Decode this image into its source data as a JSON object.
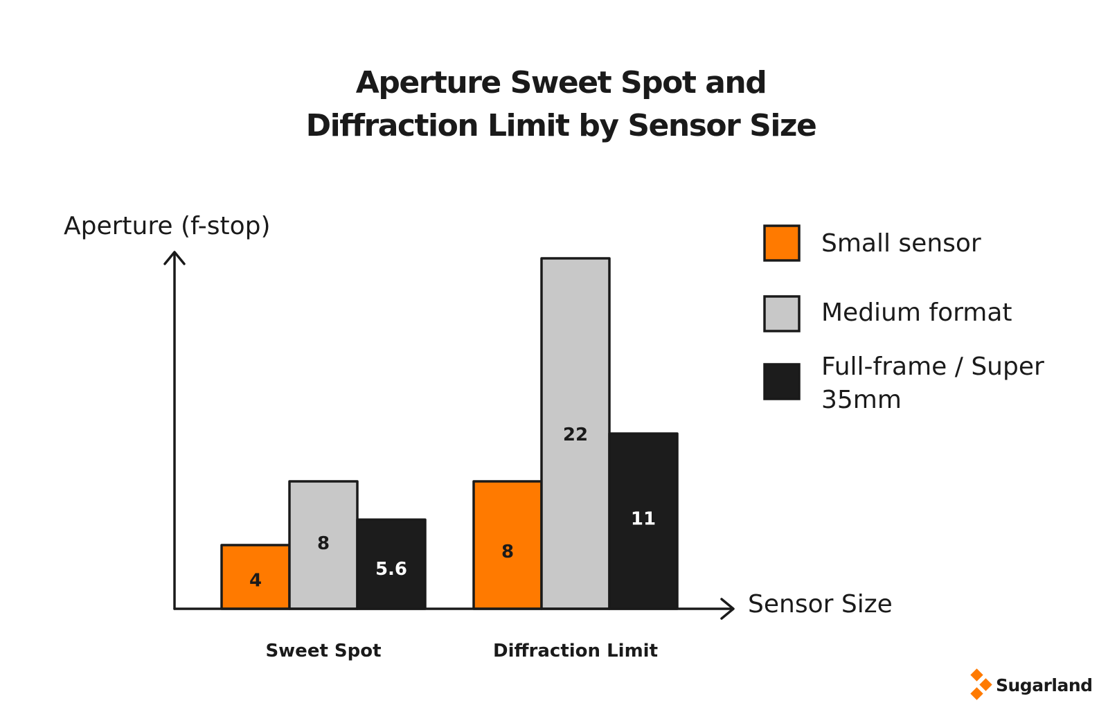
{
  "chart_data": {
    "type": "bar",
    "title": "Aperture Sweet Spot and Diffraction Limit by Sensor Size",
    "title_lines": [
      "Aperture Sweet Spot and",
      "Diffraction Limit by Sensor Size"
    ],
    "ylabel": "Aperture (f-stop)",
    "xlabel": "Sensor Size",
    "categories": [
      "Sweet Spot",
      "Diffraction Limit"
    ],
    "series": [
      {
        "name": "Small sensor",
        "values": [
          4,
          8
        ],
        "value_labels": [
          "4",
          "8"
        ],
        "color": "#ff7a00",
        "label_color": "#1a1a1a"
      },
      {
        "name": "Medium format",
        "values": [
          8,
          22
        ],
        "value_labels": [
          "8",
          "22"
        ],
        "color": "#c8c8c8",
        "label_color": "#1a1a1a"
      },
      {
        "name": "Full-frame / Super 35mm",
        "name_lines": [
          "Full-frame / Super",
          "35mm"
        ],
        "values": [
          5.6,
          11
        ],
        "value_labels": [
          "5.6",
          "11"
        ],
        "color": "#1c1c1c",
        "label_color": "#ffffff"
      }
    ],
    "ylim": [
      0,
      22
    ],
    "grid": false,
    "legend_position": "right",
    "y_ticks_shown": false
  },
  "brand": {
    "name": "Sugarland",
    "icon": "diamond-logo-icon",
    "color": "#ff7a00"
  },
  "colors": {
    "outline": "#1a1a1a",
    "background": "#ffffff"
  }
}
